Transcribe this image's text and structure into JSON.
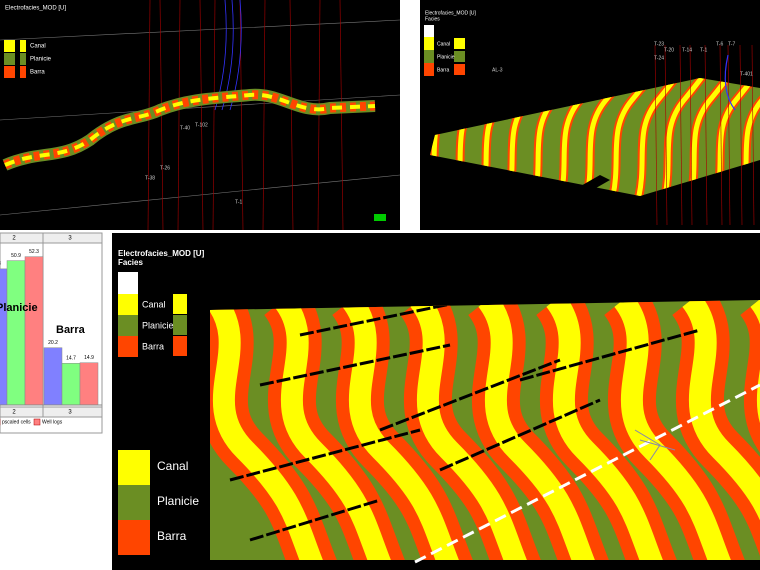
{
  "panels": [
    {
      "title": "Electrofacies_MOD [U]",
      "legend": [
        "Canal",
        "Planicie",
        "Barra"
      ],
      "wells": [
        "T-40",
        "T-102",
        "T-26",
        "T-38",
        "T-1"
      ]
    },
    {
      "title": "Electrofacies_MOD [U]",
      "subtitle": "Facies",
      "legend": [
        "Canal",
        "Planicie",
        "Barra"
      ],
      "wells": [
        "T-23",
        "T-20",
        "T-24",
        "T-14",
        "T-1",
        "T-6",
        "T-7",
        "T-401",
        "AL-3"
      ]
    },
    {
      "title": "Electrofacies_MOD [U]",
      "subtitle": "Facies",
      "legend": [
        "Canal",
        "Planicie",
        "Barra"
      ],
      "big_legend": [
        "Canal",
        "Planicie",
        "Barra"
      ]
    }
  ],
  "bar_chart": {
    "type": "bar",
    "header": [
      "2",
      "3"
    ],
    "categories": [
      "Planicie",
      "Barra"
    ],
    "footer": [
      "2",
      "3"
    ],
    "series": [
      {
        "name": "pscaled cells",
        "color": "#8080ff",
        "values": [
          48,
          20.2
        ]
      },
      {
        "color": "#80ff80",
        "values": [
          50.9,
          14.7
        ]
      },
      {
        "name": "Well logs",
        "color": "#ff8080",
        "values": [
          52.3,
          14.9
        ]
      }
    ],
    "ylim": [
      0,
      55
    ]
  }
}
